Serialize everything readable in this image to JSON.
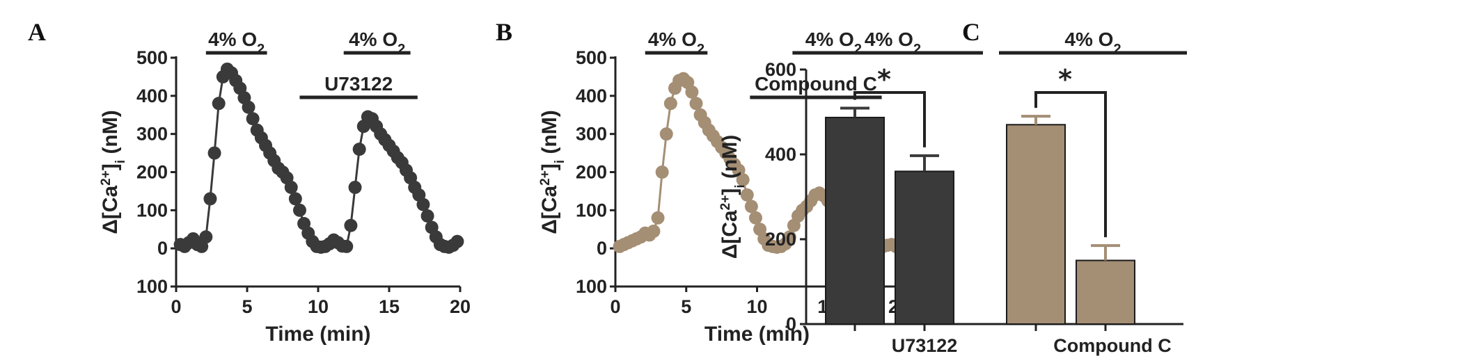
{
  "colors": {
    "dark": "#3a3a3a",
    "tan": "#a48e74",
    "axis": "#222222"
  },
  "chart_data": [
    {
      "type": "scatter",
      "panel": "A",
      "xlabel": "Time (min)",
      "ylabel_main": "Δ[Ca",
      "ylabel_sup": "2+",
      "ylabel_end": "]",
      "ylabel_sub": "i",
      "ylabel_unit": " (nM)",
      "xlim": [
        0,
        20
      ],
      "ylim": [
        -100,
        500
      ],
      "x_ticks": [
        {
          "value": 0,
          "label": "0"
        },
        {
          "value": 5,
          "label": "5"
        },
        {
          "value": 10,
          "label": "10"
        },
        {
          "value": 15,
          "label": "15"
        },
        {
          "value": 20,
          "label": "20"
        }
      ],
      "y_ticks": [
        {
          "value": -100,
          "label": "100"
        },
        {
          "value": 0,
          "label": "0"
        },
        {
          "value": 100,
          "label": "100"
        },
        {
          "value": 200,
          "label": "200"
        },
        {
          "value": 300,
          "label": "300"
        },
        {
          "value": 400,
          "label": "400"
        },
        {
          "value": 500,
          "label": "500"
        }
      ],
      "annotations": [
        {
          "label": "4% O",
          "sub": "2",
          "x_start": 2.1,
          "x_end": 6.4,
          "level": "top"
        },
        {
          "label": "4% O",
          "sub": "2",
          "x_start": 11.8,
          "x_end": 16.5,
          "level": "top"
        },
        {
          "label": "U73122",
          "sub": "",
          "x_start": 8.7,
          "x_end": 17.0,
          "level": "middle"
        }
      ],
      "series": [
        {
          "color": "#3a3a3a",
          "x": [
            0.3,
            0.6,
            0.9,
            1.2,
            1.5,
            1.8,
            2.1,
            2.4,
            2.7,
            3.0,
            3.3,
            3.6,
            3.9,
            4.2,
            4.5,
            4.8,
            5.1,
            5.4,
            5.7,
            6.0,
            6.3,
            6.6,
            6.9,
            7.2,
            7.5,
            7.8,
            8.1,
            8.4,
            8.7,
            9.0,
            9.3,
            9.6,
            9.9,
            10.2,
            10.5,
            10.8,
            11.1,
            11.4,
            11.7,
            12.0,
            12.3,
            12.6,
            12.9,
            13.2,
            13.5,
            13.8,
            14.1,
            14.4,
            14.7,
            15.0,
            15.3,
            15.6,
            15.9,
            16.2,
            16.5,
            16.8,
            17.1,
            17.4,
            17.7,
            18.0,
            18.3,
            18.6,
            18.9,
            19.2,
            19.5,
            19.8
          ],
          "values": [
            10,
            5,
            15,
            25,
            10,
            5,
            30,
            130,
            250,
            380,
            450,
            470,
            460,
            440,
            420,
            395,
            370,
            340,
            310,
            290,
            270,
            250,
            230,
            210,
            200,
            185,
            160,
            130,
            100,
            65,
            40,
            18,
            5,
            3,
            5,
            12,
            22,
            15,
            6,
            5,
            60,
            160,
            260,
            320,
            345,
            340,
            320,
            300,
            285,
            270,
            255,
            238,
            225,
            205,
            185,
            160,
            140,
            115,
            85,
            55,
            30,
            10,
            5,
            3,
            8,
            18
          ]
        }
      ]
    },
    {
      "type": "scatter",
      "panel": "B",
      "xlabel": "Time (min)",
      "ylabel_main": "Δ[Ca",
      "ylabel_sup": "2+",
      "ylabel_end": "]",
      "ylabel_sub": "i",
      "ylabel_unit": " (nM)",
      "xlim": [
        0,
        20
      ],
      "ylim": [
        -100,
        500
      ],
      "x_ticks": [
        {
          "value": 0,
          "label": "0"
        },
        {
          "value": 5,
          "label": "5"
        },
        {
          "value": 10,
          "label": "10"
        },
        {
          "value": 15,
          "label": "15"
        },
        {
          "value": 20,
          "label": "20"
        }
      ],
      "y_ticks": [
        {
          "value": -100,
          "label": "100"
        },
        {
          "value": 0,
          "label": "0"
        },
        {
          "value": 100,
          "label": "100"
        },
        {
          "value": 200,
          "label": "200"
        },
        {
          "value": 300,
          "label": "300"
        },
        {
          "value": 400,
          "label": "400"
        },
        {
          "value": 500,
          "label": "500"
        }
      ],
      "annotations": [
        {
          "label": "4% O",
          "sub": "2",
          "x_start": 2.1,
          "x_end": 6.5,
          "level": "top"
        },
        {
          "label": "4% O",
          "sub": "2",
          "x_start": 12.5,
          "x_end": 18.3,
          "level": "top"
        },
        {
          "label": "Compound C",
          "sub": "",
          "x_start": 9.5,
          "x_end": 18.8,
          "level": "middle"
        }
      ],
      "series": [
        {
          "color": "#a48e74",
          "x": [
            0.3,
            0.6,
            0.9,
            1.2,
            1.5,
            1.8,
            2.1,
            2.4,
            2.7,
            3.0,
            3.3,
            3.6,
            3.9,
            4.2,
            4.5,
            4.8,
            5.1,
            5.4,
            5.7,
            6.0,
            6.3,
            6.6,
            6.9,
            7.2,
            7.5,
            7.8,
            8.1,
            8.4,
            8.7,
            9.0,
            9.3,
            9.6,
            9.9,
            10.2,
            10.5,
            10.8,
            11.1,
            11.4,
            11.7,
            12.0,
            12.3,
            12.6,
            12.9,
            13.2,
            13.5,
            13.8,
            14.1,
            14.4,
            14.7,
            15.0,
            15.3,
            15.6,
            15.9,
            16.2,
            16.5,
            16.8,
            17.1,
            17.4,
            17.7,
            18.0,
            18.3,
            18.6,
            18.9,
            19.2,
            19.5,
            19.8
          ],
          "values": [
            5,
            10,
            15,
            20,
            25,
            30,
            40,
            35,
            45,
            80,
            200,
            300,
            380,
            420,
            440,
            445,
            435,
            410,
            380,
            350,
            330,
            310,
            295,
            280,
            265,
            250,
            235,
            220,
            205,
            180,
            140,
            110,
            80,
            50,
            25,
            8,
            5,
            3,
            5,
            12,
            30,
            60,
            85,
            100,
            110,
            125,
            140,
            145,
            138,
            125,
            110,
            90,
            60,
            30,
            10,
            5,
            3,
            8,
            15,
            10,
            5,
            3,
            5,
            8,
            10,
            5
          ]
        }
      ]
    },
    {
      "type": "bar",
      "panel": "C",
      "ylabel_main": "Δ[Ca",
      "ylabel_sup": "2+",
      "ylabel_end": "]",
      "ylabel_sub": "i",
      "ylabel_unit": " (nM)",
      "ylim": [
        0,
        600
      ],
      "y_ticks": [
        {
          "value": 0,
          "label": "0"
        },
        {
          "value": 200,
          "label": "200"
        },
        {
          "value": 400,
          "label": "400"
        },
        {
          "value": 600,
          "label": "600"
        }
      ],
      "categories": [
        "",
        "U73122",
        "",
        "Compound C"
      ],
      "values": [
        487,
        360,
        470,
        150
      ],
      "errors": [
        22,
        37,
        20,
        35
      ],
      "bar_colors": [
        "#3a3a3a",
        "#3a3a3a",
        "#a48e74",
        "#a48e74"
      ],
      "group_labels": [
        {
          "label": "4% O",
          "sub": "2",
          "bars": [
            0,
            1
          ]
        },
        {
          "label": "4% O",
          "sub": "2",
          "bars": [
            2,
            3
          ]
        }
      ],
      "significance": [
        {
          "from": 0,
          "to": 1,
          "label": "*"
        },
        {
          "from": 2,
          "to": 3,
          "label": "*"
        }
      ]
    }
  ]
}
